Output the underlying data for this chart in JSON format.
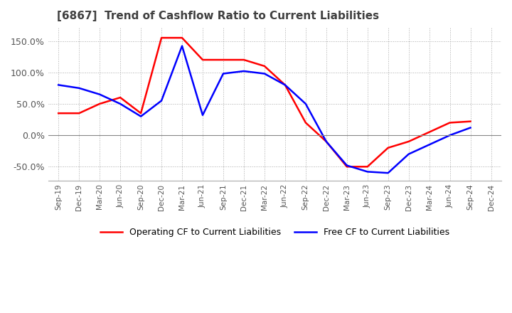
{
  "title": "[6867]  Trend of Cashflow Ratio to Current Liabilities",
  "x_labels": [
    "Sep-19",
    "Dec-19",
    "Mar-20",
    "Jun-20",
    "Sep-20",
    "Dec-20",
    "Mar-21",
    "Jun-21",
    "Sep-21",
    "Dec-21",
    "Mar-22",
    "Jun-22",
    "Sep-22",
    "Dec-22",
    "Mar-23",
    "Jun-23",
    "Sep-23",
    "Dec-23",
    "Mar-24",
    "Jun-24",
    "Sep-24",
    "Dec-24"
  ],
  "operating_cf": [
    0.35,
    0.35,
    0.5,
    0.6,
    0.35,
    1.55,
    1.55,
    1.2,
    1.2,
    1.2,
    1.1,
    0.8,
    0.2,
    -0.1,
    -0.5,
    -0.5,
    -0.2,
    -0.1,
    0.05,
    0.2,
    0.22,
    null
  ],
  "free_cf": [
    0.8,
    0.75,
    0.65,
    0.5,
    0.3,
    0.55,
    1.42,
    0.32,
    0.98,
    1.02,
    0.98,
    0.8,
    0.5,
    -0.1,
    -0.48,
    -0.58,
    -0.6,
    -0.3,
    -0.15,
    0.0,
    0.12,
    null
  ],
  "operating_color": "#ff0000",
  "free_color": "#0000ff",
  "background_color": "#ffffff",
  "title_color": "#404040",
  "title_fontsize": 11,
  "legend_labels": [
    "Operating CF to Current Liabilities",
    "Free CF to Current Liabilities"
  ],
  "yticks": [
    -0.5,
    0.0,
    0.5,
    1.0,
    1.5
  ],
  "ytick_labels": [
    "-50.0%",
    "0.0%",
    "50.0%",
    "100.0%",
    "150.0%"
  ],
  "ylim_min": -0.72,
  "ylim_max": 1.72
}
